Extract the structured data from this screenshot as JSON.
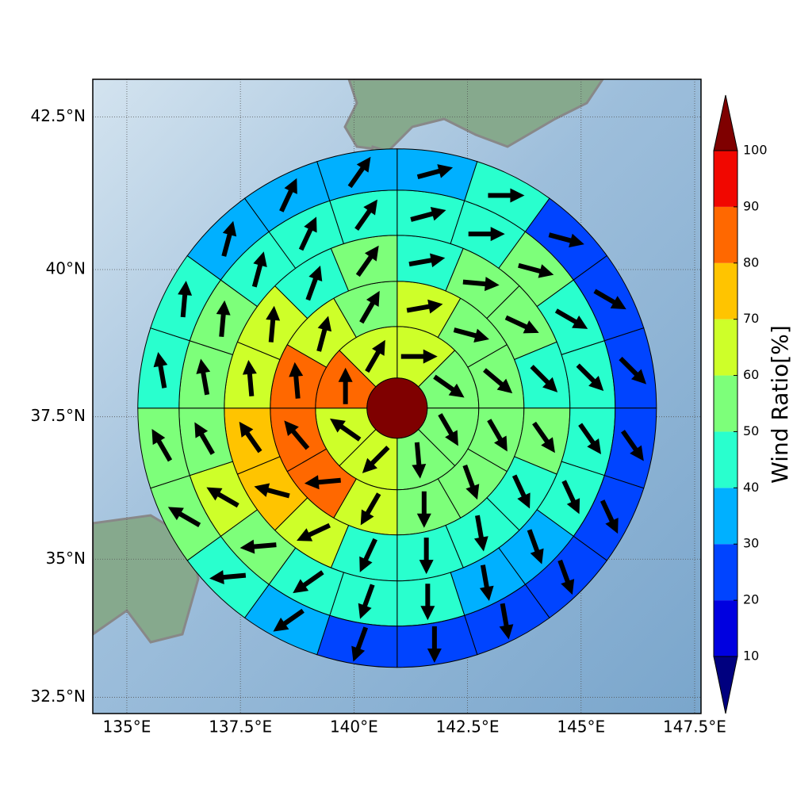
{
  "chart_data": {
    "type": "wind-ratio-map",
    "xlim": [
      134.25,
      147.64
    ],
    "ylim": [
      32.2,
      43.1
    ],
    "xticks": [
      {
        "value": 135,
        "label": "135°E"
      },
      {
        "value": 137.5,
        "label": "137.5°E"
      },
      {
        "value": 140,
        "label": "140°E"
      },
      {
        "value": 142.5,
        "label": "142.5°E"
      },
      {
        "value": 145,
        "label": "145°E"
      },
      {
        "value": 147.5,
        "label": "147.5°E"
      }
    ],
    "yticks": [
      {
        "value": 32.5,
        "label": "32.5°N"
      },
      {
        "value": 35,
        "label": "35°N"
      },
      {
        "value": 37.5,
        "label": "37.5°N"
      },
      {
        "value": 40,
        "label": "40°N"
      },
      {
        "value": 42.5,
        "label": "42.5°N"
      }
    ],
    "grid": true,
    "colorbar": {
      "label": "Wind Ratio[%]",
      "ticks": [
        10,
        20,
        30,
        40,
        50,
        60,
        70,
        80,
        90,
        100
      ],
      "colors": [
        "#00007f",
        "#0000e0",
        "#0044ff",
        "#00b0ff",
        "#29ffce",
        "#7dff7a",
        "#ceff29",
        "#ffc400",
        "#ff6800",
        "#f10700",
        "#7f0000"
      ]
    },
    "center": {
      "lon": 140.95,
      "lat": 37.65,
      "value": 105
    },
    "rings": [
      {
        "values": [
          65,
          55,
          55,
          55,
          65,
          65,
          85,
          65
        ],
        "directions": [
          90,
          125,
          150,
          175,
          225,
          305,
          0,
          30
        ]
      },
      {
        "values": [
          65,
          55,
          55,
          55,
          55,
          55,
          65,
          85,
          85,
          85,
          65,
          55
        ],
        "directions": [
          80,
          105,
          130,
          150,
          160,
          180,
          210,
          265,
          320,
          355,
          15,
          30
        ]
      },
      {
        "values": [
          45,
          55,
          55,
          45,
          55,
          45,
          45,
          45,
          45,
          65,
          75,
          75,
          65,
          65,
          45,
          55
        ],
        "directions": [
          80,
          95,
          115,
          135,
          145,
          155,
          170,
          180,
          205,
          245,
          285,
          325,
          355,
          5,
          20,
          35
        ]
      },
      {
        "values": [
          45,
          45,
          55,
          45,
          45,
          45,
          45,
          35,
          35,
          45,
          45,
          45,
          55,
          65,
          55,
          55,
          55,
          45,
          45,
          45
        ],
        "directions": [
          75,
          90,
          105,
          120,
          135,
          145,
          155,
          160,
          170,
          180,
          200,
          235,
          265,
          300,
          330,
          350,
          5,
          15,
          25,
          35
        ]
      },
      {
        "values": [
          35,
          45,
          25,
          25,
          25,
          25,
          25,
          25,
          25,
          25,
          25,
          35,
          45,
          55,
          55,
          45,
          45,
          35,
          35,
          35
        ],
        "directions": [
          75,
          90,
          105,
          120,
          135,
          145,
          155,
          160,
          170,
          180,
          200,
          235,
          265,
          300,
          330,
          350,
          5,
          15,
          25,
          35
        ]
      }
    ]
  }
}
